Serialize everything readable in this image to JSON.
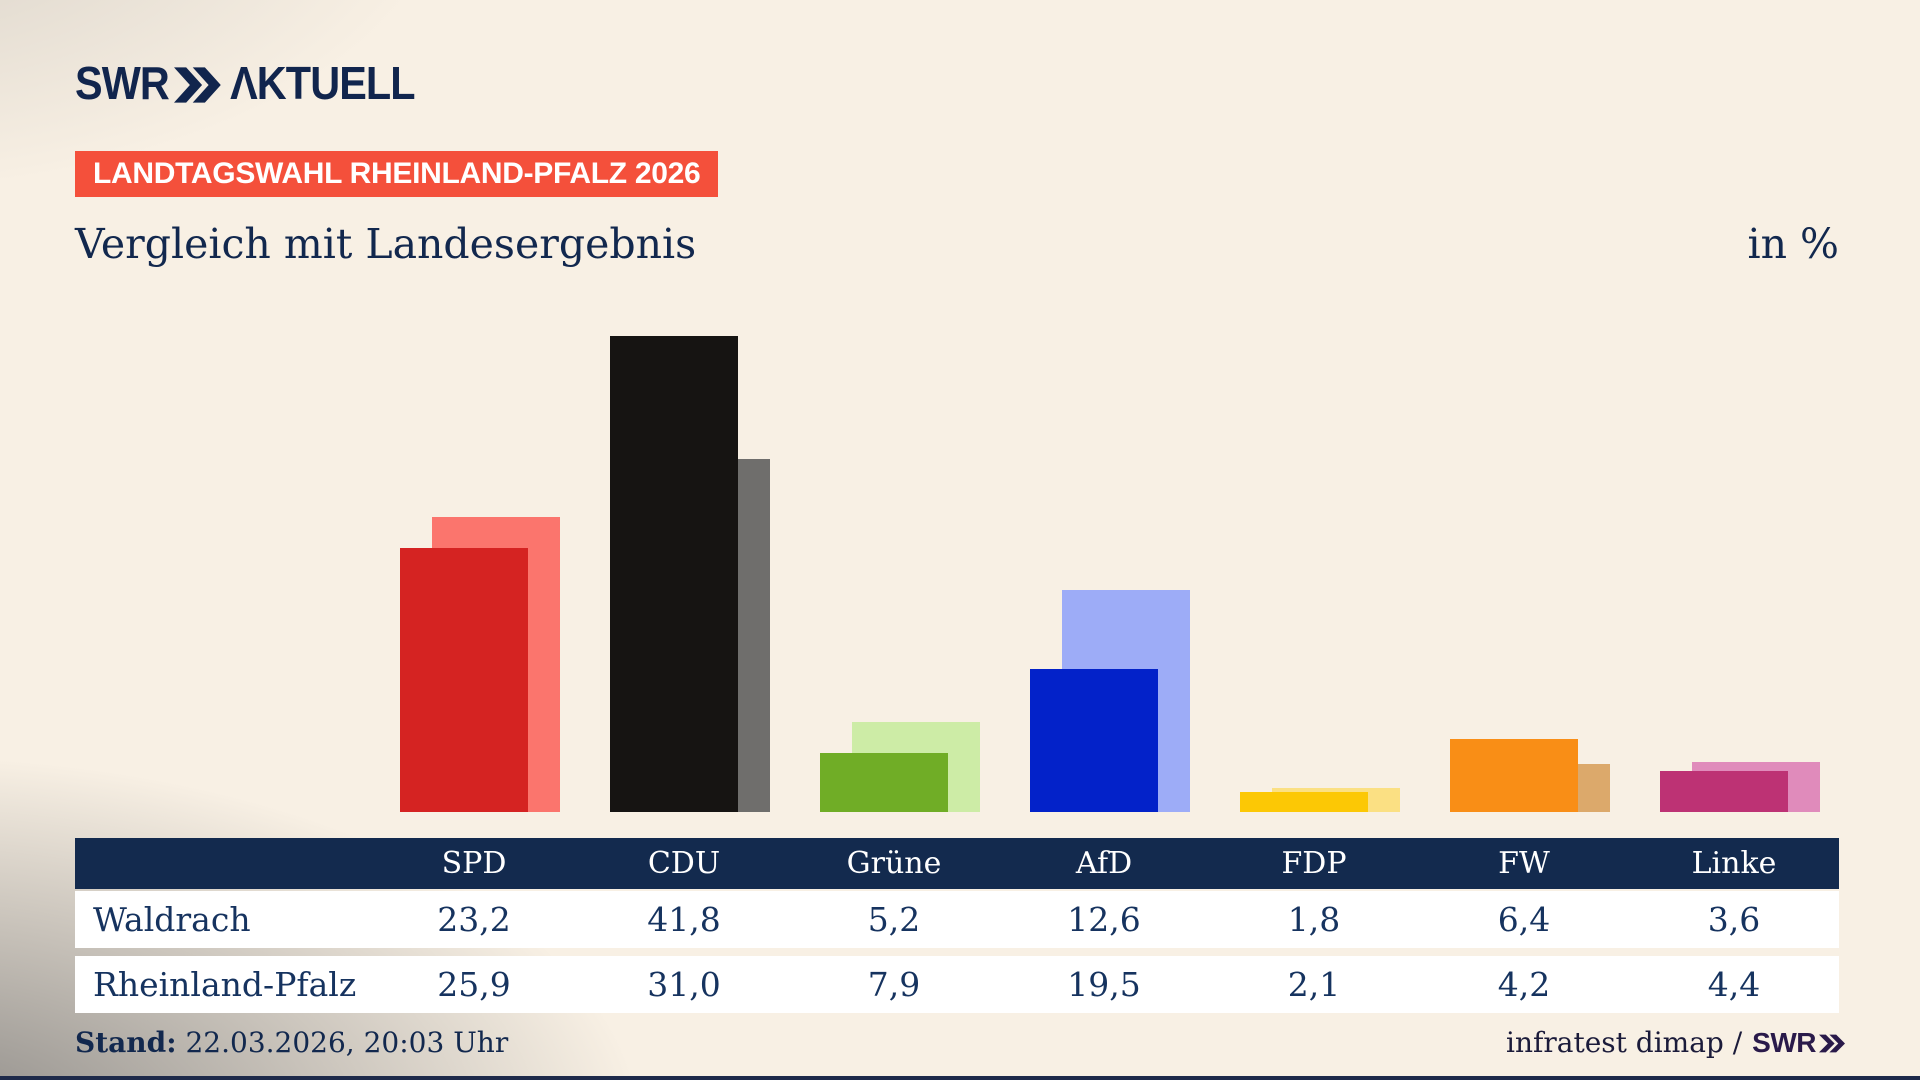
{
  "header": {
    "logo": {
      "brand": "SWR",
      "chevrons": "double-chevron",
      "suffix": "AKTUELL",
      "suffix_display": "ΛKTUELL"
    },
    "badge": "LANDTAGSWAHL RHEINLAND-PFALZ 2026",
    "title": "Vergleich mit Landesergebnis",
    "unit_label": "in %"
  },
  "chart_data": {
    "type": "bar",
    "title": "Vergleich mit Landesergebnis",
    "unit": "%",
    "categories": [
      "SPD",
      "CDU",
      "Grüne",
      "AfD",
      "FDP",
      "FW",
      "Linke"
    ],
    "series": [
      {
        "name": "Waldrach",
        "values": [
          23.2,
          41.8,
          5.2,
          12.6,
          1.8,
          6.4,
          3.6
        ],
        "colors": [
          "#d52322",
          "#161412",
          "#70ad26",
          "#0322c9",
          "#fcc805",
          "#f98e16",
          "#bd3274"
        ]
      },
      {
        "name": "Rheinland-Pfalz",
        "values": [
          25.9,
          31.0,
          7.9,
          19.5,
          2.1,
          4.2,
          4.4
        ],
        "colors": [
          "#fb756d",
          "#6f6e6c",
          "#cdeca6",
          "#9dacf7",
          "#fbe083",
          "#dca96b",
          "#e08bbb"
        ]
      }
    ],
    "ylim": [
      0,
      41.8
    ],
    "grid": false,
    "legend": "table-below",
    "value_format": "decimal-comma"
  },
  "table": {
    "columns": [
      "SPD",
      "CDU",
      "Grüne",
      "AfD",
      "FDP",
      "FW",
      "Linke"
    ],
    "rows": [
      {
        "label": "Waldrach",
        "values": [
          "23,2",
          "41,8",
          "5,2",
          "12,6",
          "1,8",
          "6,4",
          "3,6"
        ]
      },
      {
        "label": "Rheinland-Pfalz",
        "values": [
          "25,9",
          "31,0",
          "7,9",
          "19,5",
          "2,1",
          "4,2",
          "4,4"
        ]
      }
    ]
  },
  "footer": {
    "stand_label": "Stand:",
    "stand_value": "22.03.2026, 20:03 Uhr",
    "source": "infratest dimap /",
    "source_brand": "SWR"
  },
  "colors": {
    "background": "#f8f0e4",
    "badge": "#f4503b",
    "navy": "#12284e",
    "table_header": "#132a4e",
    "row_bg": "#ffffff"
  }
}
